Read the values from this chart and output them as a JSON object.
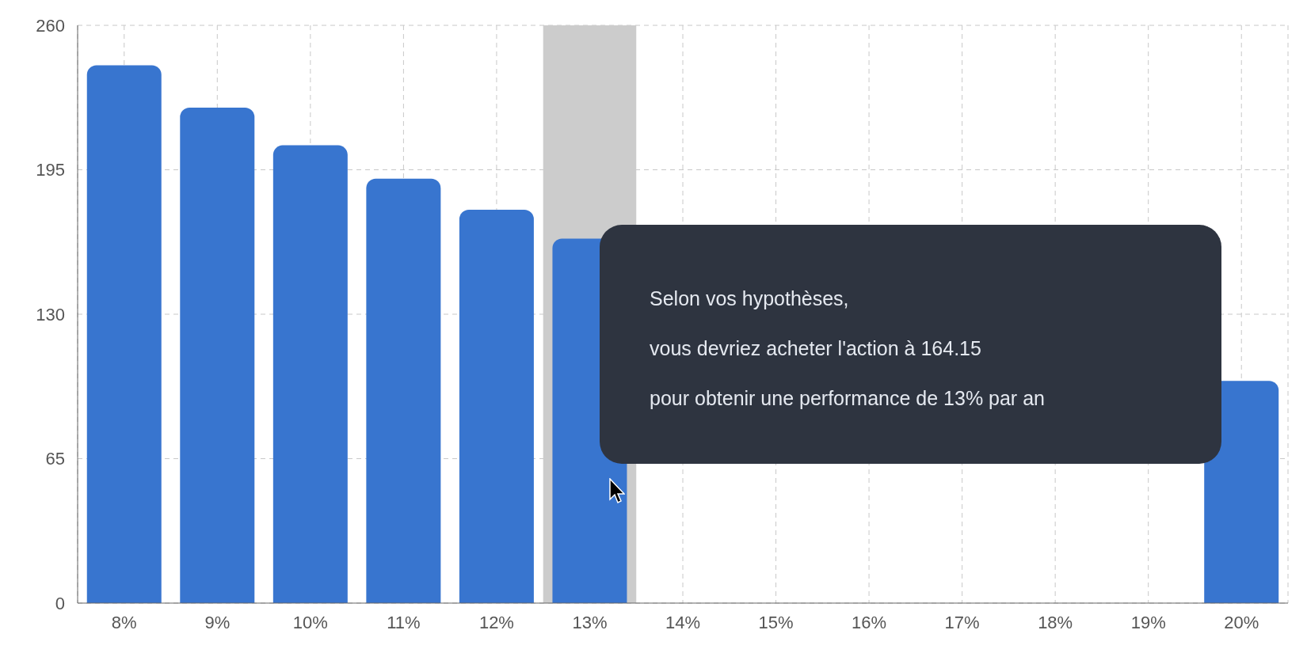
{
  "chart_data": {
    "type": "bar",
    "categories": [
      "8%",
      "9%",
      "10%",
      "11%",
      "12%",
      "13%",
      "14%",
      "15%",
      "16%",
      "17%",
      "18%",
      "19%",
      "20%"
    ],
    "values": [
      242,
      223,
      206,
      191,
      177,
      164,
      null,
      null,
      null,
      null,
      null,
      null,
      100
    ],
    "color": "#3875cf",
    "ylim": [
      0,
      260
    ],
    "yticks": [
      0,
      65,
      130,
      195,
      260
    ],
    "grid": true,
    "bands": [
      {
        "axis": "x",
        "from": "13%",
        "to": "13%",
        "color": "#cccccc"
      }
    ],
    "annotations": [
      "Selon vos hypothèses,",
      "vous devriez acheter l'action à 164.15",
      "pour obtenir une performance de 13% par an"
    ]
  }
}
